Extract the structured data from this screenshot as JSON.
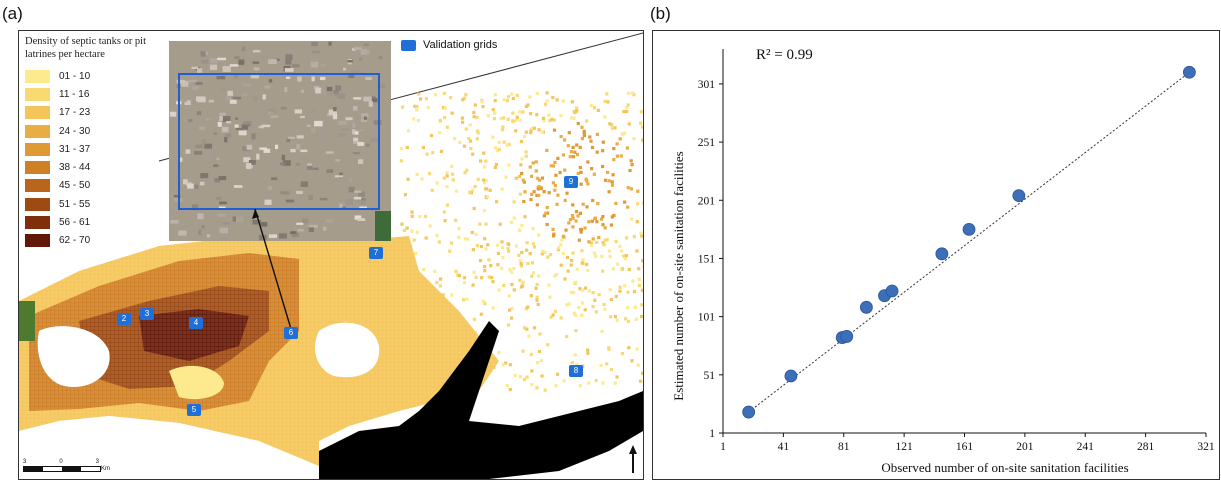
{
  "panel_a": {
    "label": "(a)",
    "legend": {
      "title": "Density of septic tanks or pit latrines per hectare",
      "classes": [
        {
          "label": "01 - 10",
          "color": "#fde98e"
        },
        {
          "label": "11 - 16",
          "color": "#f8d972"
        },
        {
          "label": "17 - 23",
          "color": "#f3c55a"
        },
        {
          "label": "24 - 30",
          "color": "#e9ad45"
        },
        {
          "label": "31 - 37",
          "color": "#df9a36"
        },
        {
          "label": "38 - 44",
          "color": "#cf7f26"
        },
        {
          "label": "45 - 50",
          "color": "#b9651b"
        },
        {
          "label": "51 - 55",
          "color": "#9d4a13"
        },
        {
          "label": "56 - 61",
          "color": "#7f2f0b"
        },
        {
          "label": "62 - 70",
          "color": "#621806"
        }
      ]
    },
    "validation_legend": {
      "label": "Validation grids",
      "color": "#1f6fd6"
    },
    "validation_grids": [
      "2",
      "3",
      "4",
      "5",
      "6",
      "7",
      "8",
      "9"
    ],
    "scale": {
      "ticks": [
        "3",
        "0",
        "3"
      ],
      "unit": "Km"
    }
  },
  "panel_b": {
    "label": "(b)",
    "annotation": "R² = 0.99"
  },
  "chart_data": {
    "type": "scatter",
    "title": "",
    "xlabel": "Observed number  of on-site sanitation facilities",
    "ylabel": "Estimated number of on-site sanitation facilities",
    "xlim": [
      1,
      321
    ],
    "ylim": [
      1,
      331
    ],
    "xticks": [
      1,
      41,
      81,
      121,
      161,
      201,
      241,
      281,
      321
    ],
    "yticks": [
      1,
      51,
      101,
      151,
      201,
      251,
      301
    ],
    "x": [
      18,
      46,
      80,
      83,
      96,
      108,
      113,
      146,
      164,
      197,
      310
    ],
    "y": [
      19,
      50,
      83,
      84,
      109,
      119,
      123,
      155,
      176,
      205,
      311
    ],
    "annotation": "R² = 0.99",
    "trendline": {
      "style": "dotted",
      "from": [
        18,
        19
      ],
      "to": [
        310,
        311
      ]
    },
    "point_color": "#3d6fb8",
    "grid": false
  }
}
